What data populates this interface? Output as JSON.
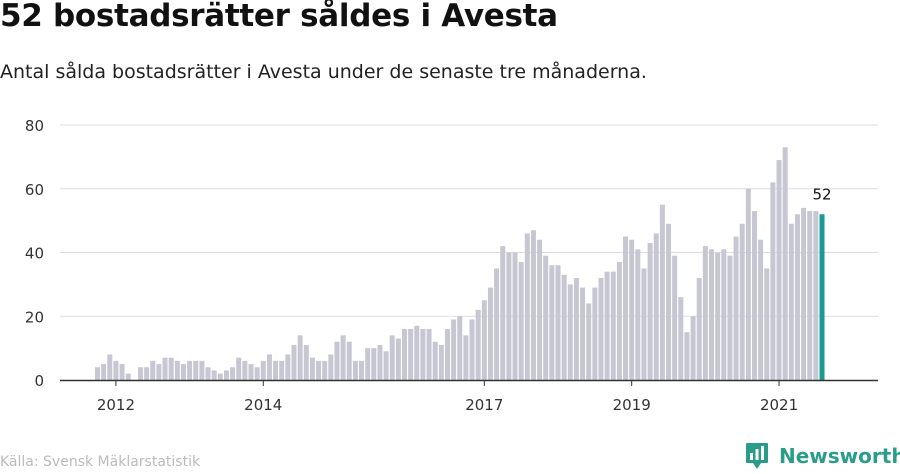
{
  "header": {
    "title": "52 bostadsrätter såldes i Avesta",
    "subtitle": "Antal sålda bostadsrätter i Avesta under de senaste tre månaderna."
  },
  "footer": {
    "source": "Källa: Svensk Mäklarstatistik",
    "brand": "Newsworthy"
  },
  "colors": {
    "bar": "#c7c6d3",
    "highlight": "#1a9a93",
    "brand": "#2a9d8a",
    "grid": "#dddddd",
    "axis": "#333333"
  },
  "chart_data": {
    "type": "bar",
    "start_year": 2011,
    "start_month": 10,
    "values": [
      4,
      5,
      8,
      6,
      5,
      2,
      0,
      4,
      4,
      6,
      5,
      7,
      7,
      6,
      5,
      6,
      6,
      6,
      4,
      3,
      2,
      3,
      4,
      7,
      6,
      5,
      4,
      6,
      8,
      6,
      6,
      8,
      11,
      14,
      11,
      7,
      6,
      6,
      8,
      12,
      14,
      12,
      6,
      6,
      10,
      10,
      11,
      9,
      14,
      13,
      16,
      16,
      17,
      16,
      16,
      12,
      11,
      16,
      19,
      20,
      14,
      19,
      22,
      25,
      29,
      35,
      42,
      40,
      40,
      37,
      46,
      47,
      44,
      39,
      36,
      36,
      33,
      30,
      32,
      29,
      24,
      29,
      32,
      34,
      34,
      37,
      45,
      44,
      41,
      35,
      43,
      46,
      55,
      49,
      39,
      26,
      15,
      20,
      32,
      42,
      41,
      40,
      41,
      39,
      45,
      49,
      60,
      53,
      44,
      35,
      62,
      69,
      73,
      49,
      52,
      54,
      53,
      53,
      52
    ],
    "highlight_value": 52,
    "highlight_label": "52",
    "y_ticks": [
      0,
      20,
      40,
      60,
      80
    ],
    "ylim": [
      0,
      80
    ],
    "x_ticks": [
      {
        "label": "2012",
        "year": 2012
      },
      {
        "label": "2014",
        "year": 2014
      },
      {
        "label": "2017",
        "year": 2017
      },
      {
        "label": "2019",
        "year": 2019
      },
      {
        "label": "2021",
        "year": 2021
      }
    ],
    "grid": true
  }
}
